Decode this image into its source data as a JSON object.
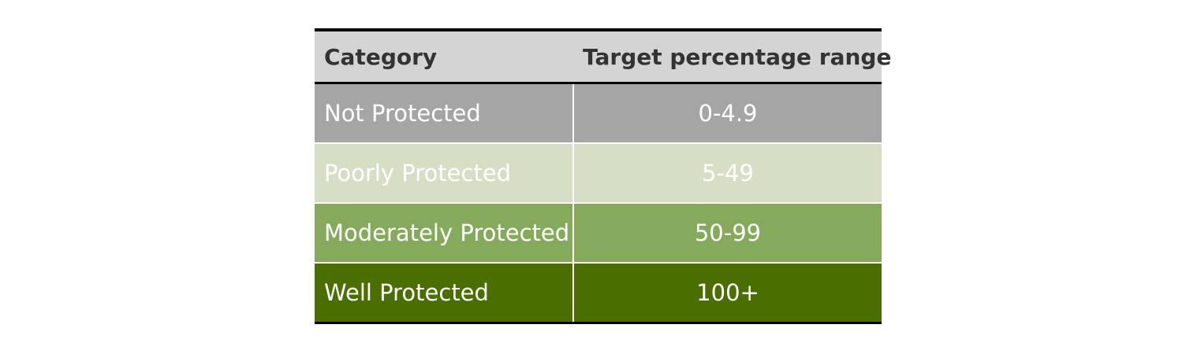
{
  "table": {
    "headers": {
      "category": "Category",
      "range": "Target percentage range"
    },
    "rows": [
      {
        "category": "Not Protected",
        "range": "0-4.9",
        "color": "#a5a5a5"
      },
      {
        "category": "Poorly Protected",
        "range": "5-49",
        "color": "#d6dfc6"
      },
      {
        "category": "Moderately Protected",
        "range": "50-99",
        "color": "#85aa5c"
      },
      {
        "category": "Well Protected",
        "range": "100+",
        "color": "#4a6e00"
      }
    ]
  }
}
